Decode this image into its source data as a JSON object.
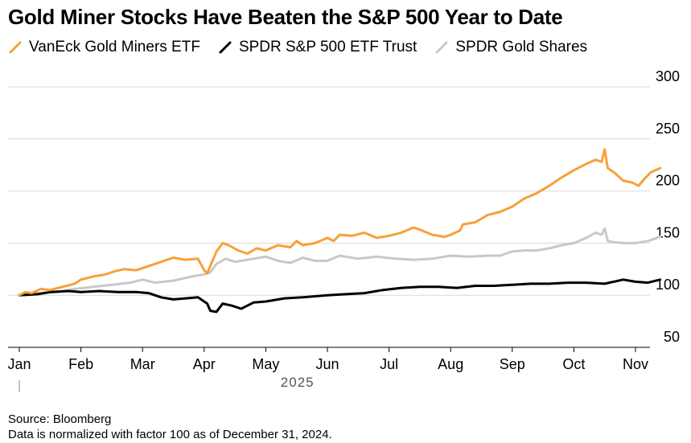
{
  "title": "Gold Miner Stocks Have Beaten the S&P 500 Year to Date",
  "footer": {
    "source": "Source: Bloomberg",
    "note": "Data is normalized with factor 100 as of December 31, 2024."
  },
  "chart_data": {
    "type": "line",
    "title": "Gold Miner Stocks Have Beaten the S&P 500 Year to Date",
    "xlabel": "2025",
    "ylabel": "",
    "ylim": [
      50,
      300
    ],
    "yticks": [
      50,
      100,
      150,
      200,
      250,
      300
    ],
    "y_axis_side": "right",
    "grid": true,
    "legend_position": "top-left",
    "x_months": [
      "Jan",
      "Feb",
      "Mar",
      "Apr",
      "May",
      "Jun",
      "Jul",
      "Aug",
      "Sep",
      "Oct",
      "Nov"
    ],
    "x_domain_months": [
      0,
      10.4
    ],
    "series": [
      {
        "name": "VanEck Gold Miners ETF",
        "color": "#f5a13a",
        "x": [
          0,
          0.1,
          0.2,
          0.35,
          0.5,
          0.7,
          0.9,
          1.0,
          1.2,
          1.4,
          1.55,
          1.7,
          1.9,
          2.1,
          2.3,
          2.5,
          2.7,
          2.9,
          3.0,
          3.05,
          3.12,
          3.2,
          3.3,
          3.4,
          3.55,
          3.7,
          3.85,
          4.0,
          4.2,
          4.4,
          4.5,
          4.6,
          4.8,
          5.0,
          5.1,
          5.2,
          5.4,
          5.6,
          5.8,
          6.0,
          6.2,
          6.4,
          6.5,
          6.7,
          6.9,
          7.0,
          7.15,
          7.2,
          7.4,
          7.6,
          7.8,
          8.0,
          8.2,
          8.4,
          8.6,
          8.8,
          9.0,
          9.2,
          9.35,
          9.45,
          9.5,
          9.55,
          9.65,
          9.8,
          9.95,
          10.05,
          10.15,
          10.25,
          10.4
        ],
        "values": [
          100,
          103,
          102,
          106,
          105,
          108,
          111,
          115,
          118,
          120,
          123,
          125,
          124,
          128,
          132,
          136,
          134,
          135,
          124,
          121,
          131,
          142,
          150,
          148,
          143,
          140,
          145,
          143,
          148,
          146,
          152,
          148,
          150,
          155,
          152,
          158,
          157,
          160,
          155,
          157,
          160,
          165,
          163,
          158,
          156,
          158,
          162,
          168,
          170,
          177,
          180,
          185,
          193,
          198,
          205,
          213,
          220,
          226,
          230,
          228,
          240,
          222,
          218,
          210,
          208,
          205,
          212,
          218,
          222
        ]
      },
      {
        "name": "SPDR S&P 500 ETF Trust",
        "color": "#000000",
        "x": [
          0,
          0.3,
          0.5,
          0.8,
          1.0,
          1.3,
          1.6,
          1.9,
          2.1,
          2.3,
          2.5,
          2.7,
          2.9,
          3.05,
          3.1,
          3.2,
          3.3,
          3.45,
          3.6,
          3.8,
          4.0,
          4.3,
          4.6,
          5.0,
          5.3,
          5.6,
          5.9,
          6.2,
          6.5,
          6.8,
          7.1,
          7.4,
          7.7,
          8.0,
          8.3,
          8.6,
          8.9,
          9.2,
          9.5,
          9.8,
          10.0,
          10.2,
          10.4
        ],
        "values": [
          100,
          101,
          103,
          104,
          103,
          104,
          103,
          103,
          102,
          98,
          96,
          97,
          98,
          92,
          85,
          84,
          92,
          90,
          87,
          93,
          94,
          97,
          98,
          100,
          101,
          102,
          105,
          107,
          108,
          108,
          107,
          109,
          109,
          110,
          111,
          111,
          112,
          112,
          111,
          115,
          113,
          112,
          115
        ]
      },
      {
        "name": "SPDR Gold Shares",
        "color": "#c8c8c8",
        "x": [
          0,
          0.3,
          0.6,
          0.9,
          1.2,
          1.5,
          1.8,
          2.0,
          2.2,
          2.5,
          2.8,
          3.0,
          3.1,
          3.2,
          3.35,
          3.5,
          3.8,
          4.0,
          4.2,
          4.4,
          4.6,
          4.8,
          5.0,
          5.2,
          5.5,
          5.8,
          6.1,
          6.4,
          6.7,
          7.0,
          7.3,
          7.6,
          7.8,
          8.0,
          8.2,
          8.4,
          8.6,
          8.8,
          9.0,
          9.2,
          9.35,
          9.45,
          9.5,
          9.55,
          9.65,
          9.8,
          10.0,
          10.2,
          10.4
        ],
        "values": [
          100,
          102,
          103,
          106,
          108,
          110,
          112,
          115,
          112,
          114,
          118,
          120,
          122,
          130,
          135,
          132,
          135,
          137,
          133,
          131,
          136,
          133,
          133,
          138,
          135,
          137,
          135,
          134,
          135,
          138,
          137,
          138,
          138,
          142,
          143,
          143,
          145,
          148,
          150,
          155,
          160,
          158,
          164,
          152,
          151,
          150,
          150,
          152,
          156
        ]
      }
    ]
  }
}
